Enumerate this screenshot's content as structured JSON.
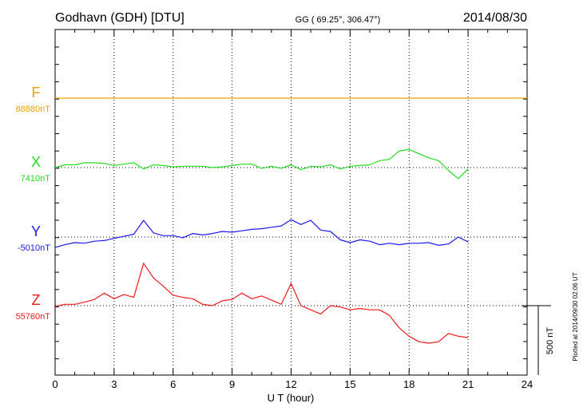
{
  "header": {
    "station": "Godhavn (GDH)  [DTU]",
    "coords": "GG ( 69.25°, 306.47°)",
    "date": "2014/08/30"
  },
  "side_note": "Plotted at 2014/09/30 02:06 UT",
  "scale_label": "500 nT",
  "chart_data": {
    "type": "line",
    "xlabel": "U T (hour)",
    "xlim": [
      0,
      24
    ],
    "x_ticks": [
      0,
      3,
      6,
      9,
      12,
      15,
      18,
      21,
      24
    ],
    "x_tick_labels": [
      "0",
      "3",
      "6",
      "9",
      "12",
      "15",
      "18",
      "21",
      "24"
    ],
    "scale_bar_nT": 500,
    "grid": true,
    "colors": {
      "F": "#f0a000",
      "X": "#22dd22",
      "Y": "#1a1aee",
      "Z": "#ee1a1a"
    },
    "series": [
      {
        "name": "F",
        "baseline_label": "88880nT",
        "x": [
          0,
          24
        ],
        "values": [
          88880,
          88880
        ]
      },
      {
        "name": "X",
        "baseline_label": "7410nT",
        "x": [
          0,
          0.5,
          1,
          1.5,
          2,
          2.5,
          3,
          3.5,
          4,
          4.5,
          5,
          5.5,
          6,
          6.5,
          7,
          7.5,
          8,
          8.5,
          9,
          9.5,
          10,
          10.5,
          11,
          11.5,
          12,
          12.5,
          13,
          13.5,
          14,
          14.5,
          15,
          15.5,
          16,
          16.5,
          17,
          17.5,
          18,
          18.5,
          19,
          19.5,
          20,
          20.5,
          21
        ],
        "values": [
          7410,
          7430,
          7430,
          7445,
          7445,
          7440,
          7425,
          7435,
          7445,
          7400,
          7430,
          7425,
          7415,
          7420,
          7420,
          7420,
          7410,
          7415,
          7425,
          7435,
          7435,
          7405,
          7420,
          7405,
          7430,
          7395,
          7420,
          7415,
          7430,
          7400,
          7420,
          7425,
          7430,
          7460,
          7470,
          7530,
          7540,
          7510,
          7480,
          7460,
          7390,
          7330,
          7400
        ]
      },
      {
        "name": "Y",
        "baseline_label": "-5010nT",
        "x": [
          0,
          0.5,
          1,
          1.5,
          2,
          2.5,
          3,
          3.5,
          4,
          4.5,
          5,
          5.5,
          6,
          6.5,
          7,
          7.5,
          8,
          8.5,
          9,
          9.5,
          10,
          10.5,
          11,
          11.5,
          12,
          12.5,
          13,
          13.5,
          14,
          14.5,
          15,
          15.5,
          16,
          16.5,
          17,
          17.5,
          18,
          18.5,
          19,
          19.5,
          20,
          20.5,
          21
        ],
        "values": [
          -5085,
          -5065,
          -5050,
          -5055,
          -5040,
          -5035,
          -5020,
          -5005,
          -4990,
          -4890,
          -4980,
          -5000,
          -5000,
          -5015,
          -4985,
          -4995,
          -4985,
          -4970,
          -4975,
          -4965,
          -4955,
          -4950,
          -4940,
          -4930,
          -4885,
          -4920,
          -4890,
          -4960,
          -4970,
          -5030,
          -5050,
          -5030,
          -5040,
          -5065,
          -5055,
          -5065,
          -5055,
          -5055,
          -5050,
          -5070,
          -5060,
          -5010,
          -5045
        ]
      },
      {
        "name": "Z",
        "baseline_label": "55760nT",
        "x": [
          0,
          0.5,
          1,
          1.5,
          2,
          2.5,
          3,
          3.5,
          4,
          4.5,
          5,
          5.5,
          6,
          6.5,
          7,
          7.5,
          8,
          8.5,
          9,
          9.5,
          10,
          10.5,
          11,
          11.5,
          12,
          12.5,
          13,
          13.5,
          14,
          14.5,
          15,
          15.5,
          16,
          16.5,
          17,
          17.5,
          18,
          18.5,
          19,
          19.5,
          20,
          20.5,
          21
        ],
        "values": [
          55755,
          55770,
          55770,
          55785,
          55805,
          55850,
          55810,
          55840,
          55820,
          56065,
          55960,
          55900,
          55835,
          55820,
          55810,
          55770,
          55760,
          55795,
          55805,
          55850,
          55810,
          55830,
          55800,
          55770,
          55920,
          55760,
          55730,
          55700,
          55760,
          55750,
          55730,
          55740,
          55730,
          55730,
          55690,
          55600,
          55540,
          55500,
          55490,
          55500,
          55560,
          55540,
          55530
        ]
      }
    ]
  }
}
